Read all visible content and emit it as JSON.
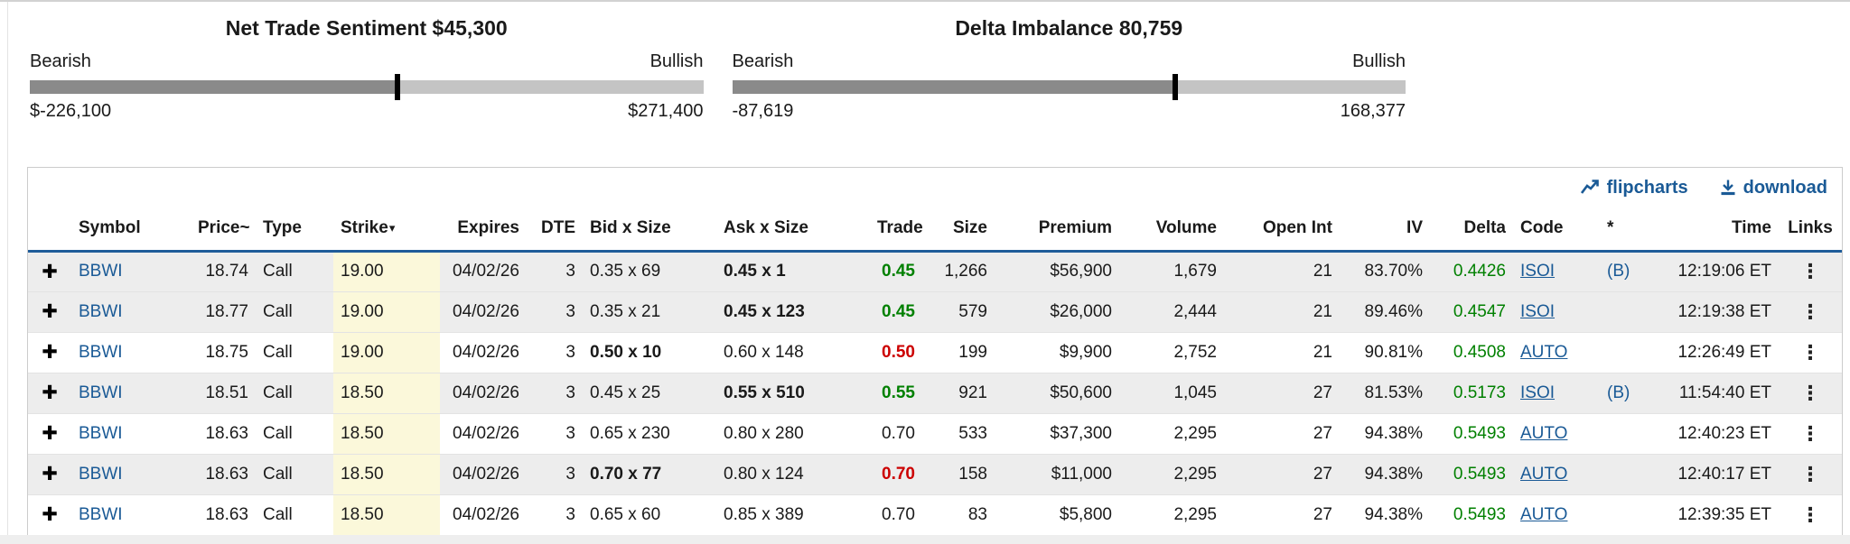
{
  "colors": {
    "link_blue": "#1a5a96",
    "green": "#008000",
    "red": "#cc0000",
    "header_border_blue": "#1f5c99",
    "strike_highlight": "#fbf8da",
    "row_stripe": "#ededed",
    "gauge_dark": "#8a8a8a",
    "gauge_light": "#c4c4c4"
  },
  "icons": {
    "expand": "✚",
    "kebab": "⋮",
    "sort_down": "▾",
    "flipcharts": "flipcharts-line-icon",
    "download": "download-tray-icon"
  },
  "gauges": [
    {
      "title": "Net Trade Sentiment $45,300",
      "left_label": "Bearish",
      "right_label": "Bullish",
      "min_label": "$-226,100",
      "max_label": "$271,400",
      "value": 45300,
      "min": -226100,
      "max": 271400
    },
    {
      "title": "Delta Imbalance 80,759",
      "left_label": "Bearish",
      "right_label": "Bullish",
      "min_label": "-87,619",
      "max_label": "168,377",
      "value": 80759,
      "min": -87619,
      "max": 168377
    }
  ],
  "toolbar": {
    "flipcharts_label": "flipcharts",
    "download_label": "download"
  },
  "table": {
    "columns": [
      "",
      "Symbol",
      "Price~",
      "Type",
      "Strike",
      "Expires",
      "DTE",
      "Bid x Size",
      "Ask x Size",
      "Trade",
      "Size",
      "Premium",
      "Volume",
      "Open Int",
      "IV",
      "Delta",
      "Code",
      "*",
      "Time",
      "Links"
    ],
    "sorted_column": "Strike",
    "rows": [
      {
        "symbol": "BBWI",
        "price": "18.74",
        "type": "Call",
        "strike": "19.00",
        "expires": "04/02/26",
        "dte": "3",
        "bid": "0.35 x 69",
        "bid_bold": false,
        "ask": "0.45 x 1",
        "ask_bold": true,
        "trade": "0.45",
        "trade_color": "green",
        "size": "1,266",
        "premium": "$56,900",
        "volume": "1,679",
        "open_int": "21",
        "iv": "83.70%",
        "delta": "0.4426",
        "code": "ISOI",
        "star": "(B)",
        "time": "12:19:06 ET",
        "shaded": true
      },
      {
        "symbol": "BBWI",
        "price": "18.77",
        "type": "Call",
        "strike": "19.00",
        "expires": "04/02/26",
        "dte": "3",
        "bid": "0.35 x 21",
        "bid_bold": false,
        "ask": "0.45 x 123",
        "ask_bold": true,
        "trade": "0.45",
        "trade_color": "green",
        "size": "579",
        "premium": "$26,000",
        "volume": "2,444",
        "open_int": "21",
        "iv": "89.46%",
        "delta": "0.4547",
        "code": "ISOI",
        "star": "",
        "time": "12:19:38 ET",
        "shaded": true
      },
      {
        "symbol": "BBWI",
        "price": "18.75",
        "type": "Call",
        "strike": "19.00",
        "expires": "04/02/26",
        "dte": "3",
        "bid": "0.50 x 10",
        "bid_bold": true,
        "ask": "0.60 x 148",
        "ask_bold": false,
        "trade": "0.50",
        "trade_color": "red",
        "size": "199",
        "premium": "$9,900",
        "volume": "2,752",
        "open_int": "21",
        "iv": "90.81%",
        "delta": "0.4508",
        "code": "AUTO",
        "star": "",
        "time": "12:26:49 ET",
        "shaded": false
      },
      {
        "symbol": "BBWI",
        "price": "18.51",
        "type": "Call",
        "strike": "18.50",
        "expires": "04/02/26",
        "dte": "3",
        "bid": "0.45 x 25",
        "bid_bold": false,
        "ask": "0.55 x 510",
        "ask_bold": true,
        "trade": "0.55",
        "trade_color": "green",
        "size": "921",
        "premium": "$50,600",
        "volume": "1,045",
        "open_int": "27",
        "iv": "81.53%",
        "delta": "0.5173",
        "code": "ISOI",
        "star": "(B)",
        "time": "11:54:40 ET",
        "shaded": true
      },
      {
        "symbol": "BBWI",
        "price": "18.63",
        "type": "Call",
        "strike": "18.50",
        "expires": "04/02/26",
        "dte": "3",
        "bid": "0.65 x 230",
        "bid_bold": false,
        "ask": "0.80 x 280",
        "ask_bold": false,
        "trade": "0.70",
        "trade_color": "black",
        "size": "533",
        "premium": "$37,300",
        "volume": "2,295",
        "open_int": "27",
        "iv": "94.38%",
        "delta": "0.5493",
        "code": "AUTO",
        "star": "",
        "time": "12:40:23 ET",
        "shaded": false
      },
      {
        "symbol": "BBWI",
        "price": "18.63",
        "type": "Call",
        "strike": "18.50",
        "expires": "04/02/26",
        "dte": "3",
        "bid": "0.70 x 77",
        "bid_bold": true,
        "ask": "0.80 x 124",
        "ask_bold": false,
        "trade": "0.70",
        "trade_color": "red",
        "size": "158",
        "premium": "$11,000",
        "volume": "2,295",
        "open_int": "27",
        "iv": "94.38%",
        "delta": "0.5493",
        "code": "AUTO",
        "star": "",
        "time": "12:40:17 ET",
        "shaded": true
      },
      {
        "symbol": "BBWI",
        "price": "18.63",
        "type": "Call",
        "strike": "18.50",
        "expires": "04/02/26",
        "dte": "3",
        "bid": "0.65 x 60",
        "bid_bold": false,
        "ask": "0.85 x 389",
        "ask_bold": false,
        "trade": "0.70",
        "trade_color": "black",
        "size": "83",
        "premium": "$5,800",
        "volume": "2,295",
        "open_int": "27",
        "iv": "94.38%",
        "delta": "0.5493",
        "code": "AUTO",
        "star": "",
        "time": "12:39:35 ET",
        "shaded": false
      }
    ]
  }
}
